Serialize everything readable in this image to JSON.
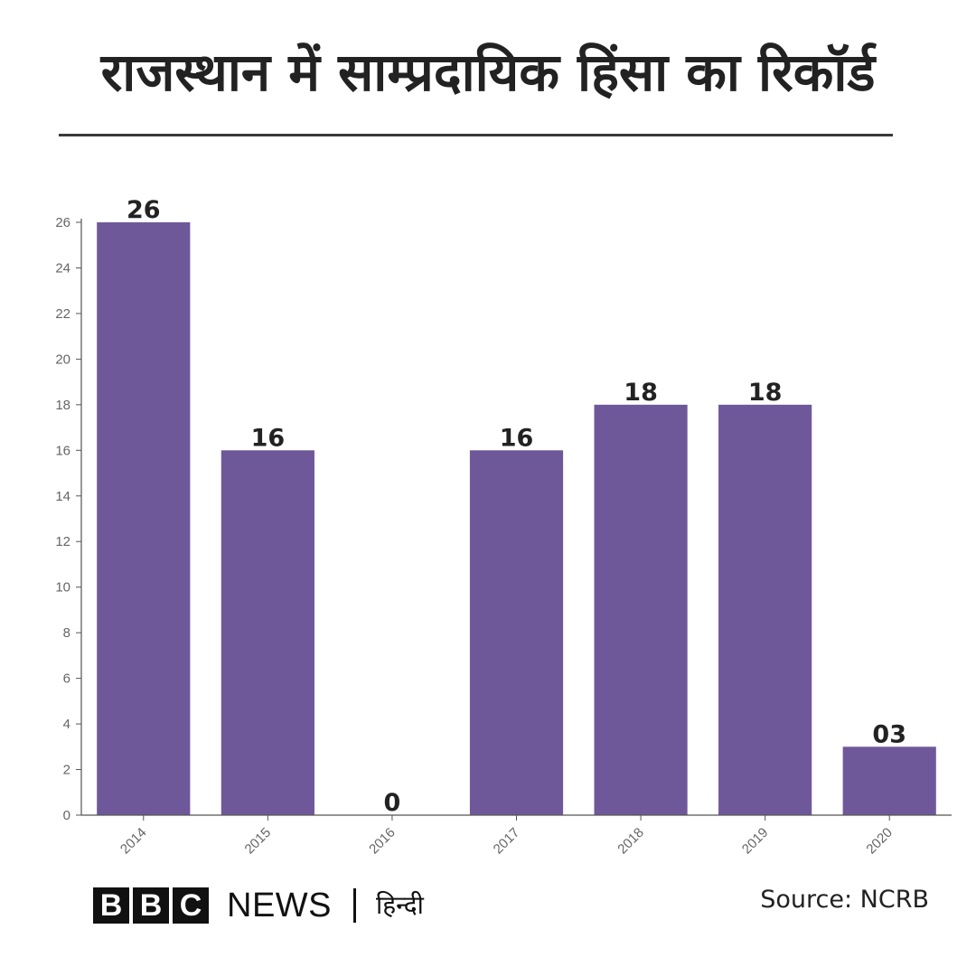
{
  "title": "राजस्थान में साम्प्रदायिक हिंसा का रिकॉर्ड",
  "chart_data": {
    "type": "bar",
    "categories": [
      "2014",
      "2015",
      "2016",
      "2017",
      "2018",
      "2019",
      "2020"
    ],
    "values": [
      26,
      16,
      0,
      16,
      18,
      18,
      3
    ],
    "data_labels": [
      "26",
      "16",
      "0",
      "16",
      "18",
      "18",
      "03"
    ],
    "yticks": [
      0,
      2,
      4,
      6,
      8,
      10,
      12,
      14,
      16,
      18,
      20,
      22,
      24,
      26
    ],
    "ylim": [
      0,
      26
    ],
    "xlabel": "",
    "ylabel": "",
    "grid": false,
    "bar_color": "#6e5899",
    "axis_color": "#555555",
    "tick_label_color": "#666666"
  },
  "footer": {
    "brand_letters": [
      "B",
      "B",
      "C"
    ],
    "news": "NEWS",
    "service": "हिन्दी",
    "source": "Source: NCRB"
  }
}
